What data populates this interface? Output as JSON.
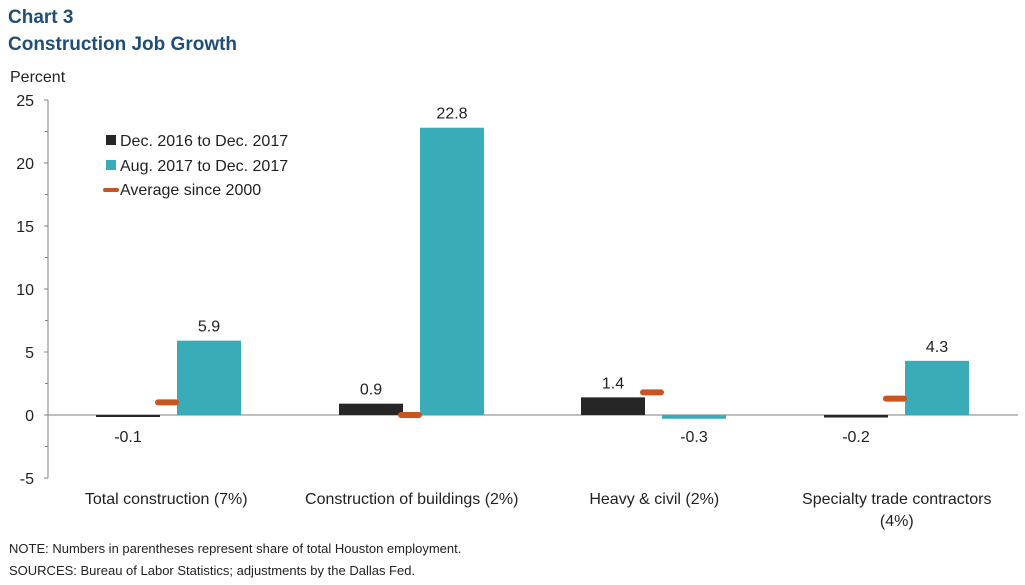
{
  "title_line1": "Chart 3",
  "title_line2": "Construction Job Growth",
  "colors": {
    "series1": "#262626",
    "series2": "#3aacb8",
    "average": "#c8541f",
    "title": "#1f4e79"
  },
  "chart_data": {
    "type": "bar",
    "ylabel": "Percent",
    "ylim": [
      -5,
      25
    ],
    "yticks": [
      -5,
      0,
      5,
      10,
      15,
      20,
      25
    ],
    "categories": [
      [
        "Total construction (7%)"
      ],
      [
        "Construction of buildings (2%)"
      ],
      [
        "Heavy & civil (2%)"
      ],
      [
        "Specialty trade contractors",
        "(4%)"
      ]
    ],
    "series": [
      {
        "name": "Dec. 2016 to Dec. 2017",
        "values": [
          -0.1,
          0.9,
          1.4,
          -0.2
        ],
        "labels": [
          "-0.1",
          "0.9",
          "1.4",
          "-0.2"
        ]
      },
      {
        "name": "Aug. 2017 to Dec. 2017",
        "values": [
          5.9,
          22.8,
          -0.3,
          4.3
        ],
        "labels": [
          "5.9",
          "22.8",
          "-0.3",
          "4.3"
        ]
      }
    ],
    "average": {
      "name": "Average since 2000",
      "values": [
        1.0,
        0.0,
        1.8,
        1.3
      ]
    },
    "legend_position": "top-left"
  },
  "notes": {
    "note": "NOTE:  Numbers  in parentheses represent share of total Houston employment.",
    "sources": "SOURCES:  Bureau of Labor Statistics;  adjustments by the Dallas Fed."
  }
}
